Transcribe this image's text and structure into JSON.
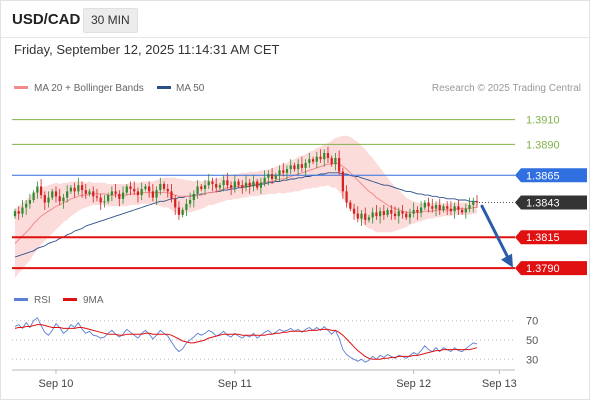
{
  "header": {
    "symbol": "USD/CAD",
    "timeframe": "30 MIN"
  },
  "datetime": "Friday, September 12, 2025 11:14:31 AM CET",
  "legend": {
    "ma20": "MA 20 + Bollinger Bands",
    "ma50": "MA 50",
    "credit": "Research © 2025 Trading Central"
  },
  "rsi_legend": {
    "rsi": "RSI",
    "ma": "9MA"
  },
  "colors": {
    "up": "#2e8b2e",
    "down": "#d62020",
    "ma20": "#f28b8b",
    "band": "#fbd5d5",
    "ma50": "#2c4f8a",
    "resistance": "#7fb24a",
    "pivot": "#2f6fe0",
    "support": "#e01010",
    "current": "#333333",
    "rsi": "#5b7fd6",
    "rsi_ma": "#e01010",
    "arrow": "#2a5ca8"
  },
  "chart_data": [
    {
      "type": "candlestick",
      "title": "",
      "xlabel": "",
      "ylabel": "",
      "ylim": [
        1.3778,
        1.3925
      ],
      "current_price": 1.3843,
      "levels": [
        {
          "label": "1.3910",
          "value": 1.391,
          "kind": "resistance"
        },
        {
          "label": "1.3890",
          "value": 1.389,
          "kind": "resistance"
        },
        {
          "label": "1.3865",
          "value": 1.3865,
          "kind": "pivot"
        },
        {
          "label": "1.3843",
          "value": 1.3843,
          "kind": "current"
        },
        {
          "label": "1.3815",
          "value": 1.3815,
          "kind": "support"
        },
        {
          "label": "1.3790",
          "value": 1.379,
          "kind": "support"
        }
      ],
      "x_ticks": [
        {
          "label": "Sep 10",
          "index": 11
        },
        {
          "label": "Sep 11",
          "index": 59
        },
        {
          "label": "Sep 12",
          "index": 107
        },
        {
          "label": "Sep 13",
          "index": 130
        }
      ],
      "forecast_arrow": {
        "from": 1.384,
        "to": 1.3792
      },
      "candles_close": [
        1.3836,
        1.3834,
        1.3839,
        1.3842,
        1.3845,
        1.3851,
        1.3856,
        1.3849,
        1.3843,
        1.3847,
        1.3852,
        1.3848,
        1.3844,
        1.3847,
        1.3852,
        1.3855,
        1.3852,
        1.3857,
        1.3853,
        1.385,
        1.3852,
        1.3848,
        1.3847,
        1.3843,
        1.3844,
        1.3849,
        1.3852,
        1.385,
        1.3846,
        1.3851,
        1.3856,
        1.3854,
        1.3852,
        1.3849,
        1.3854,
        1.3856,
        1.3852,
        1.3847,
        1.3853,
        1.3858,
        1.3854,
        1.3852,
        1.3846,
        1.3839,
        1.3833,
        1.3837,
        1.3842,
        1.3845,
        1.385,
        1.3856,
        1.3854,
        1.3857,
        1.386,
        1.3858,
        1.3855,
        1.3857,
        1.3861,
        1.3857,
        1.3855,
        1.386,
        1.3857,
        1.3855,
        1.3859,
        1.3856,
        1.386,
        1.3855,
        1.3859,
        1.3863,
        1.3866,
        1.3862,
        1.3865,
        1.3869,
        1.3867,
        1.387,
        1.3873,
        1.387,
        1.3874,
        1.3871,
        1.3875,
        1.3878,
        1.3876,
        1.388,
        1.3878,
        1.3883,
        1.3879,
        1.3874,
        1.3879,
        1.3868,
        1.3852,
        1.3843,
        1.3838,
        1.3834,
        1.383,
        1.3834,
        1.3829,
        1.3831,
        1.3835,
        1.3832,
        1.3836,
        1.3833,
        1.3837,
        1.3834,
        1.3832,
        1.3836,
        1.3834,
        1.3831,
        1.3834,
        1.3837,
        1.3835,
        1.3839,
        1.3843,
        1.384,
        1.3838,
        1.3841,
        1.3837,
        1.384,
        1.3838,
        1.3836,
        1.384,
        1.3837,
        1.3835,
        1.3838,
        1.3841,
        1.3844,
        1.3843
      ],
      "ma20": [
        1.381,
        1.3813,
        1.3816,
        1.3819,
        1.3822,
        1.3826,
        1.3829,
        1.3832,
        1.3834,
        1.3836,
        1.3838,
        1.384,
        1.3841,
        1.3843,
        1.3844,
        1.3846,
        1.3847,
        1.3848,
        1.3849,
        1.3849,
        1.385,
        1.385,
        1.385,
        1.385,
        1.385,
        1.3849,
        1.3849,
        1.3849,
        1.3849,
        1.3849,
        1.3849,
        1.385,
        1.385,
        1.385,
        1.3851,
        1.3851,
        1.3851,
        1.3851,
        1.3851,
        1.3851,
        1.3851,
        1.3851,
        1.385,
        1.3849,
        1.3848,
        1.3848,
        1.3848,
        1.3848,
        1.3848,
        1.3849,
        1.3849,
        1.385,
        1.3851,
        1.3851,
        1.3852,
        1.3853,
        1.3854,
        1.3855,
        1.3855,
        1.3856,
        1.3856,
        1.3857,
        1.3857,
        1.3858,
        1.3858,
        1.3858,
        1.3859,
        1.3859,
        1.386,
        1.386,
        1.3861,
        1.3862,
        1.3862,
        1.3863,
        1.3864,
        1.3865,
        1.3866,
        1.3867,
        1.3868,
        1.3869,
        1.387,
        1.3871,
        1.3872,
        1.3873,
        1.3874,
        1.3874,
        1.3875,
        1.3874,
        1.3872,
        1.387,
        1.3867,
        1.3864,
        1.3861,
        1.3858,
        1.3855,
        1.3852,
        1.385,
        1.3847,
        1.3845,
        1.3843,
        1.3841,
        1.3839,
        1.3838,
        1.3837,
        1.3836,
        1.3835,
        1.3835,
        1.3835,
        1.3835,
        1.3835,
        1.3836,
        1.3836,
        1.3836,
        1.3837,
        1.3837,
        1.3837,
        1.3837,
        1.3837,
        1.3838,
        1.3838,
        1.3838,
        1.3838,
        1.3838,
        1.3839,
        1.3839
      ],
      "ma50": [
        1.3799,
        1.38,
        1.3801,
        1.3802,
        1.3803,
        1.3804,
        1.3806,
        1.3807,
        1.3808,
        1.381,
        1.3811,
        1.3812,
        1.3814,
        1.3815,
        1.3817,
        1.3818,
        1.382,
        1.3821,
        1.3822,
        1.3824,
        1.3825,
        1.3826,
        1.3827,
        1.3828,
        1.3829,
        1.383,
        1.3831,
        1.3832,
        1.3833,
        1.3834,
        1.3835,
        1.3836,
        1.3837,
        1.3838,
        1.3839,
        1.384,
        1.3841,
        1.3842,
        1.3843,
        1.3844,
        1.3844,
        1.3845,
        1.3846,
        1.3846,
        1.3847,
        1.3847,
        1.3848,
        1.3848,
        1.3849,
        1.3849,
        1.385,
        1.385,
        1.3851,
        1.3851,
        1.3852,
        1.3852,
        1.3853,
        1.3853,
        1.3854,
        1.3854,
        1.3855,
        1.3855,
        1.3856,
        1.3856,
        1.3857,
        1.3857,
        1.3858,
        1.3858,
        1.3859,
        1.3859,
        1.386,
        1.386,
        1.3861,
        1.3861,
        1.3862,
        1.3862,
        1.3863,
        1.3863,
        1.3864,
        1.3864,
        1.3865,
        1.3865,
        1.3866,
        1.3866,
        1.3867,
        1.3867,
        1.3867,
        1.3867,
        1.3866,
        1.3866,
        1.3865,
        1.3864,
        1.3864,
        1.3863,
        1.3862,
        1.3861,
        1.386,
        1.3859,
        1.3858,
        1.3857,
        1.3857,
        1.3856,
        1.3855,
        1.3854,
        1.3853,
        1.3852,
        1.3852,
        1.3851,
        1.385,
        1.385,
        1.3849,
        1.3849,
        1.3848,
        1.3848,
        1.3847,
        1.3847,
        1.3846,
        1.3846,
        1.3846,
        1.3845,
        1.3845,
        1.3845,
        1.3844,
        1.3844,
        1.3844
      ],
      "bb_width": [
        0.0028,
        0.0027,
        0.0027,
        0.0026,
        0.0026,
        0.0025,
        0.0024,
        0.0023,
        0.0022,
        0.0021,
        0.002,
        0.0019,
        0.0017,
        0.0016,
        0.0015,
        0.0014,
        0.0013,
        0.0012,
        0.0011,
        0.001,
        0.001,
        0.0009,
        0.0009,
        0.0009,
        0.0009,
        0.0009,
        0.0009,
        0.0009,
        0.0009,
        0.0009,
        0.0009,
        0.0009,
        0.0009,
        0.0009,
        0.0009,
        0.0009,
        0.0009,
        0.0009,
        0.001,
        0.0011,
        0.0012,
        0.0012,
        0.0013,
        0.0014,
        0.0014,
        0.0014,
        0.0013,
        0.0013,
        0.0012,
        0.0012,
        0.0011,
        0.0011,
        0.001,
        0.001,
        0.001,
        0.001,
        0.001,
        0.001,
        0.001,
        0.001,
        0.001,
        0.001,
        0.001,
        0.001,
        0.001,
        0.001,
        0.001,
        0.001,
        0.001,
        0.001,
        0.0011,
        0.0011,
        0.0012,
        0.0012,
        0.0013,
        0.0013,
        0.0014,
        0.0014,
        0.0014,
        0.0015,
        0.0015,
        0.0016,
        0.0016,
        0.0017,
        0.0017,
        0.0019,
        0.002,
        0.0022,
        0.0025,
        0.0027,
        0.0029,
        0.003,
        0.0031,
        0.0031,
        0.0031,
        0.003,
        0.0029,
        0.0028,
        0.0026,
        0.0024,
        0.0022,
        0.002,
        0.0018,
        0.0016,
        0.0014,
        0.0012,
        0.001,
        0.0009,
        0.0008,
        0.0007,
        0.0007,
        0.0006,
        0.0006,
        0.0006,
        0.0006,
        0.0005,
        0.0005,
        0.0005,
        0.0005,
        0.0005,
        0.0005,
        0.0005,
        0.0005,
        0.0005,
        0.0005,
        0.0005,
        0.0005
      ]
    },
    {
      "type": "line",
      "title": "",
      "ylim": [
        22,
        78
      ],
      "y_ticks": [
        70,
        50,
        30
      ],
      "rsi": [
        64,
        66,
        62,
        68,
        63,
        70,
        73,
        65,
        58,
        55,
        60,
        67,
        63,
        57,
        60,
        66,
        63,
        68,
        61,
        57,
        59,
        55,
        54,
        52,
        53,
        57,
        60,
        56,
        53,
        56,
        61,
        58,
        55,
        52,
        57,
        60,
        56,
        51,
        55,
        60,
        57,
        54,
        48,
        42,
        38,
        41,
        47,
        50,
        53,
        57,
        55,
        57,
        60,
        58,
        54,
        56,
        59,
        55,
        53,
        57,
        54,
        52,
        55,
        53,
        57,
        52,
        55,
        58,
        60,
        56,
        58,
        61,
        59,
        60,
        62,
        59,
        61,
        58,
        61,
        63,
        60,
        63,
        60,
        64,
        60,
        56,
        60,
        52,
        40,
        35,
        32,
        30,
        28,
        30,
        27,
        29,
        33,
        30,
        34,
        32,
        35,
        33,
        31,
        34,
        33,
        31,
        34,
        37,
        35,
        39,
        44,
        40,
        38,
        42,
        38,
        42,
        40,
        38,
        42,
        39,
        38,
        41,
        44,
        47,
        46
      ],
      "rsi_ma": [
        62,
        63,
        63,
        64,
        64,
        65,
        66,
        66,
        65,
        64,
        63,
        63,
        63,
        62,
        62,
        62,
        62,
        63,
        63,
        62,
        61,
        60,
        59,
        58,
        57,
        56,
        56,
        56,
        55,
        55,
        56,
        56,
        56,
        56,
        56,
        57,
        57,
        56,
        56,
        56,
        56,
        56,
        55,
        53,
        51,
        49,
        48,
        47,
        47,
        48,
        49,
        50,
        52,
        53,
        54,
        55,
        56,
        56,
        56,
        56,
        56,
        55,
        55,
        55,
        55,
        55,
        55,
        55,
        56,
        56,
        57,
        57,
        58,
        58,
        59,
        59,
        59,
        59,
        59,
        60,
        60,
        60,
        61,
        61,
        61,
        60,
        60,
        58,
        55,
        51,
        47,
        43,
        39,
        36,
        33,
        31,
        30,
        30,
        30,
        31,
        31,
        32,
        32,
        33,
        33,
        33,
        33,
        34,
        34,
        35,
        36,
        37,
        38,
        39,
        39,
        40,
        40,
        40,
        40,
        40,
        40,
        40,
        40,
        41,
        42
      ]
    }
  ]
}
